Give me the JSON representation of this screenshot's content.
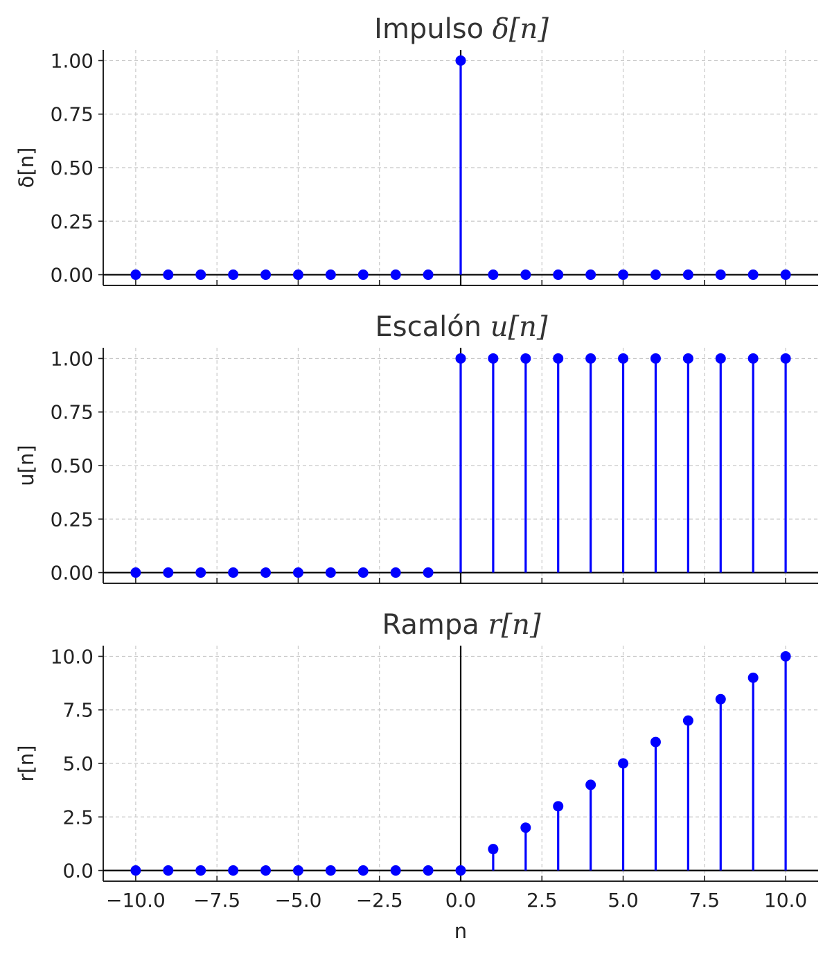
{
  "chart_data": [
    {
      "type": "stem",
      "title_text": "Impulso ",
      "title_math": "δ[n]",
      "ylabel": "δ[n]",
      "xlabel": "",
      "xlim": [
        -11,
        11
      ],
      "ylim": [
        -0.05,
        1.05
      ],
      "yticks": [
        0.0,
        0.25,
        0.5,
        0.75,
        1.0
      ],
      "ytick_labels": [
        "0.00",
        "0.25",
        "0.50",
        "0.75",
        "1.00"
      ],
      "xticks": [
        -10,
        -7.5,
        -5,
        -2.5,
        0,
        2.5,
        5,
        7.5,
        10
      ],
      "show_xtick_labels": false,
      "grid": true,
      "color": "#0000ff",
      "x": [
        -10,
        -9,
        -8,
        -7,
        -6,
        -5,
        -4,
        -3,
        -2,
        -1,
        0,
        1,
        2,
        3,
        4,
        5,
        6,
        7,
        8,
        9,
        10
      ],
      "y": [
        0,
        0,
        0,
        0,
        0,
        0,
        0,
        0,
        0,
        0,
        1,
        0,
        0,
        0,
        0,
        0,
        0,
        0,
        0,
        0,
        0
      ]
    },
    {
      "type": "stem",
      "title_text": "Escalón ",
      "title_math": "u[n]",
      "ylabel": "u[n]",
      "xlabel": "",
      "xlim": [
        -11,
        11
      ],
      "ylim": [
        -0.05,
        1.05
      ],
      "yticks": [
        0.0,
        0.25,
        0.5,
        0.75,
        1.0
      ],
      "ytick_labels": [
        "0.00",
        "0.25",
        "0.50",
        "0.75",
        "1.00"
      ],
      "xticks": [
        -10,
        -7.5,
        -5,
        -2.5,
        0,
        2.5,
        5,
        7.5,
        10
      ],
      "show_xtick_labels": false,
      "grid": true,
      "color": "#0000ff",
      "x": [
        -10,
        -9,
        -8,
        -7,
        -6,
        -5,
        -4,
        -3,
        -2,
        -1,
        0,
        1,
        2,
        3,
        4,
        5,
        6,
        7,
        8,
        9,
        10
      ],
      "y": [
        0,
        0,
        0,
        0,
        0,
        0,
        0,
        0,
        0,
        0,
        1,
        1,
        1,
        1,
        1,
        1,
        1,
        1,
        1,
        1,
        1
      ]
    },
    {
      "type": "stem",
      "title_text": "Rampa ",
      "title_math": "r[n]",
      "ylabel": "r[n]",
      "xlabel": "n",
      "xlim": [
        -11,
        11
      ],
      "ylim": [
        -0.5,
        10.5
      ],
      "yticks": [
        0.0,
        2.5,
        5.0,
        7.5,
        10.0
      ],
      "ytick_labels": [
        "0.0",
        "2.5",
        "5.0",
        "7.5",
        "10.0"
      ],
      "xticks": [
        -10,
        -7.5,
        -5,
        -2.5,
        0,
        2.5,
        5,
        7.5,
        10
      ],
      "xtick_labels": [
        "−10.0",
        "−7.5",
        "−5.0",
        "−2.5",
        "0.0",
        "2.5",
        "5.0",
        "7.5",
        "10.0"
      ],
      "show_xtick_labels": true,
      "grid": true,
      "color": "#0000ff",
      "x": [
        -10,
        -9,
        -8,
        -7,
        -6,
        -5,
        -4,
        -3,
        -2,
        -1,
        0,
        1,
        2,
        3,
        4,
        5,
        6,
        7,
        8,
        9,
        10
      ],
      "y": [
        0,
        0,
        0,
        0,
        0,
        0,
        0,
        0,
        0,
        0,
        0,
        1,
        2,
        3,
        4,
        5,
        6,
        7,
        8,
        9,
        10
      ]
    }
  ]
}
